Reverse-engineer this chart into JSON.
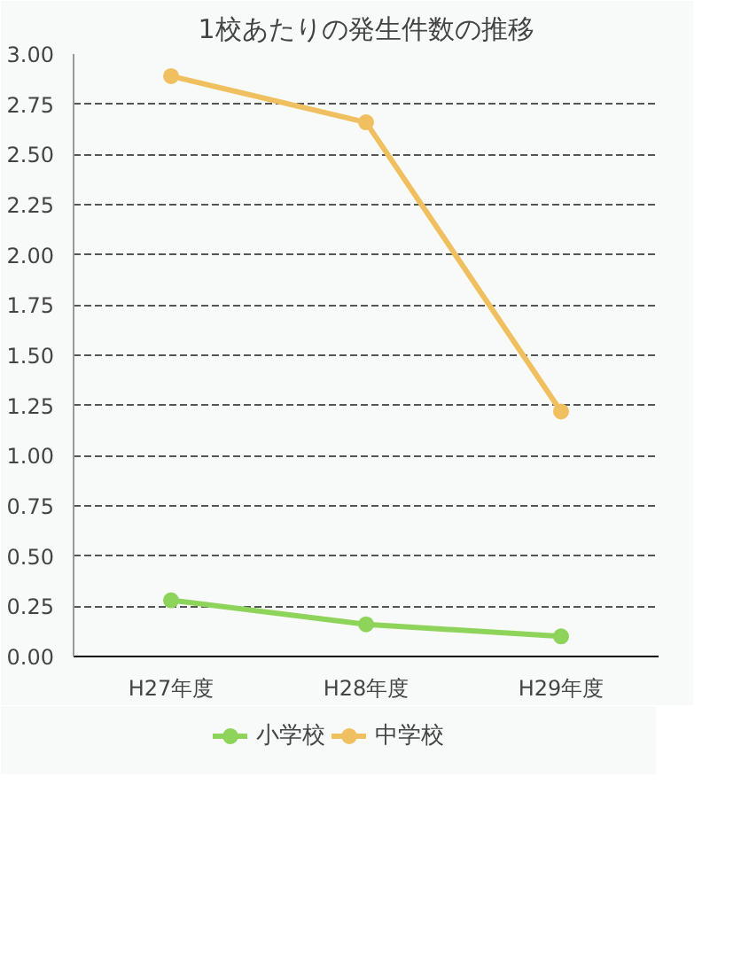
{
  "chart_data": {
    "type": "line",
    "title": "1校あたりの発生件数の推移",
    "categories": [
      "H27年度",
      "H28年度",
      "H29年度"
    ],
    "series": [
      {
        "name": "小学校",
        "color": "#8ed35a",
        "values": [
          0.28,
          0.16,
          0.1
        ]
      },
      {
        "name": "中学校",
        "color": "#f0c060",
        "values": [
          2.89,
          2.66,
          1.22
        ]
      }
    ],
    "ylim": [
      0,
      3
    ],
    "yticks": [
      {
        "value": 0,
        "label": "0.00"
      },
      {
        "value": 0.25,
        "label": "0.25"
      },
      {
        "value": 0.5,
        "label": "0.50"
      },
      {
        "value": 0.75,
        "label": "0.75"
      },
      {
        "value": 1,
        "label": "1.00"
      },
      {
        "value": 1.25,
        "label": "1.25"
      },
      {
        "value": 1.5,
        "label": "1.50"
      },
      {
        "value": 1.75,
        "label": "1.75"
      },
      {
        "value": 2,
        "label": "2.00"
      },
      {
        "value": 2.25,
        "label": "2.25"
      },
      {
        "value": 2.5,
        "label": "2.50"
      },
      {
        "value": 2.75,
        "label": "2.75"
      },
      {
        "value": 3,
        "label": "3.00"
      }
    ],
    "grid": "y",
    "legend": "bottom",
    "marker": "circle",
    "line_style": "solid"
  }
}
